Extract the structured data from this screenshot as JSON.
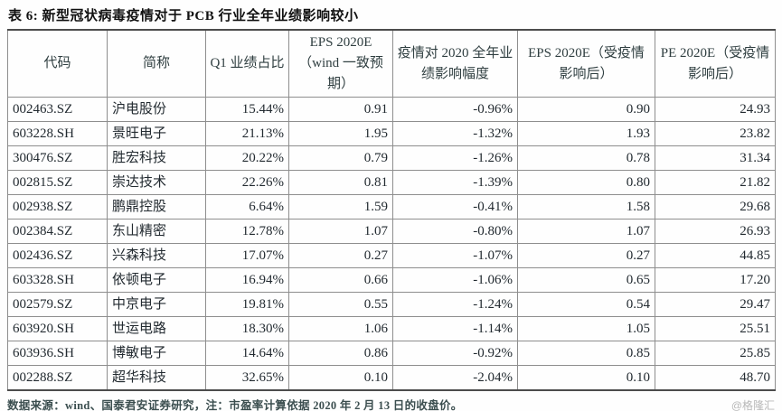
{
  "title": "表 6:  新型冠状病毒疫情对于 PCB 行业全年业绩影响较小",
  "table": {
    "columns": [
      {
        "key": "code",
        "label": "代码"
      },
      {
        "key": "name",
        "label": "简称"
      },
      {
        "key": "q1-share",
        "label": "Q1 业绩占比"
      },
      {
        "key": "eps-wind",
        "label": "EPS 2020E（wind 一致预期）"
      },
      {
        "key": "impact",
        "label": "疫情对 2020 全年业绩影响幅度"
      },
      {
        "key": "eps-adj",
        "label": "EPS 2020E（受疫情影响后）"
      },
      {
        "key": "pe-adj",
        "label": "PE 2020E（受疫情影响后）"
      }
    ],
    "rows": [
      [
        "002463.SZ",
        "沪电股份",
        "15.44%",
        "0.91",
        "-0.96%",
        "0.90",
        "24.93"
      ],
      [
        "603228.SH",
        "景旺电子",
        "21.13%",
        "1.95",
        "-1.32%",
        "1.93",
        "23.82"
      ],
      [
        "300476.SZ",
        "胜宏科技",
        "20.22%",
        "0.79",
        "-1.26%",
        "0.78",
        "31.34"
      ],
      [
        "002815.SZ",
        "崇达技术",
        "22.26%",
        "0.81",
        "-1.39%",
        "0.80",
        "21.82"
      ],
      [
        "002938.SZ",
        "鹏鼎控股",
        "6.64%",
        "1.59",
        "-0.41%",
        "1.58",
        "29.68"
      ],
      [
        "002384.SZ",
        "东山精密",
        "12.78%",
        "1.07",
        "-0.80%",
        "1.07",
        "26.93"
      ],
      [
        "002436.SZ",
        "兴森科技",
        "17.07%",
        "0.27",
        "-1.07%",
        "0.27",
        "44.85"
      ],
      [
        "603328.SH",
        "依顿电子",
        "16.94%",
        "0.66",
        "-1.06%",
        "0.65",
        "17.20"
      ],
      [
        "002579.SZ",
        "中京电子",
        "19.81%",
        "0.55",
        "-1.24%",
        "0.54",
        "29.47"
      ],
      [
        "603920.SH",
        "世运电路",
        "18.30%",
        "1.06",
        "-1.14%",
        "1.05",
        "25.51"
      ],
      [
        "603936.SH",
        "博敏电子",
        "14.64%",
        "0.86",
        "-0.92%",
        "0.85",
        "25.85"
      ],
      [
        "002288.SZ",
        "超华科技",
        "32.65%",
        "0.10",
        "-2.04%",
        "0.10",
        "48.70"
      ]
    ]
  },
  "footnote": "数据来源：wind、国泰君安证券研究，注：市盈率计算依据 2020 年 2 月 13 日的收盘价。",
  "watermark": "@格隆汇",
  "colors": {
    "title_text": "#111111",
    "table_text": "#222a30",
    "border_inner": "#8e8e8e",
    "border_frame": "#4c4c4c",
    "footnote_text": "#3b4e4f",
    "watermark_text": "#b8b8b8"
  }
}
